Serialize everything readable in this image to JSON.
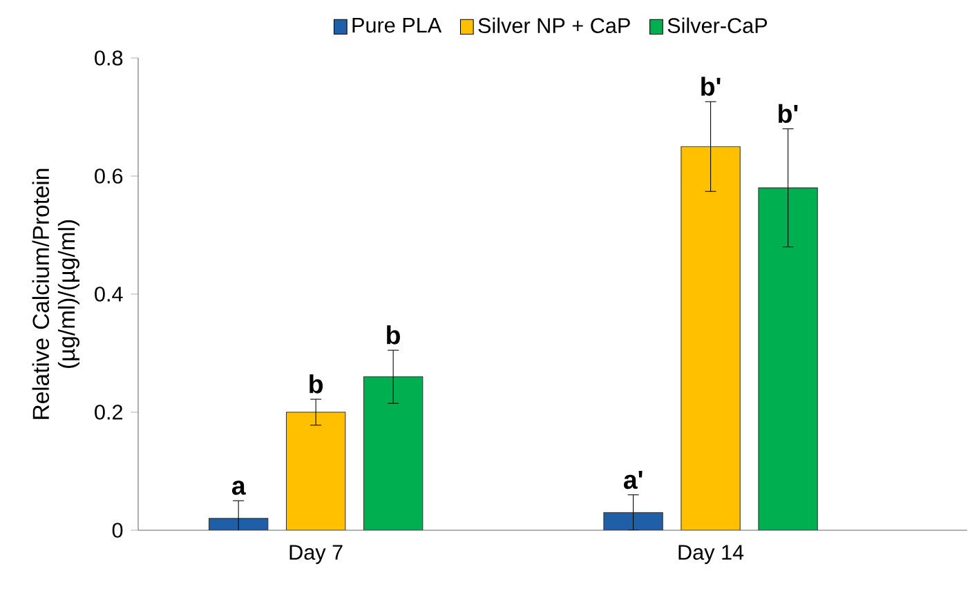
{
  "chart_data": {
    "type": "bar",
    "ylabel": "Relative Calcium/Protein (µg/ml)/(µg/ml)",
    "categories": [
      "Day 7",
      "Day 14"
    ],
    "series": [
      {
        "name": "Pure PLA",
        "color": "#1f5fa8",
        "values": [
          0.02,
          0.03
        ],
        "errors": [
          0.03,
          0.03
        ]
      },
      {
        "name": "Silver NP + CaP",
        "color": "#ffc000",
        "values": [
          0.2,
          0.65
        ],
        "errors": [
          0.022,
          0.076
        ]
      },
      {
        "name": "Silver-CaP",
        "color": "#00b050",
        "values": [
          0.26,
          0.58
        ],
        "errors": [
          0.045,
          0.1
        ]
      }
    ],
    "annotations": [
      "a",
      "b",
      "b",
      "a'",
      "b'",
      "b'"
    ],
    "ylim": [
      0,
      0.8
    ],
    "yticks": [
      0,
      0.2,
      0.4,
      0.6,
      0.8
    ],
    "grid": false,
    "legend": "top"
  }
}
